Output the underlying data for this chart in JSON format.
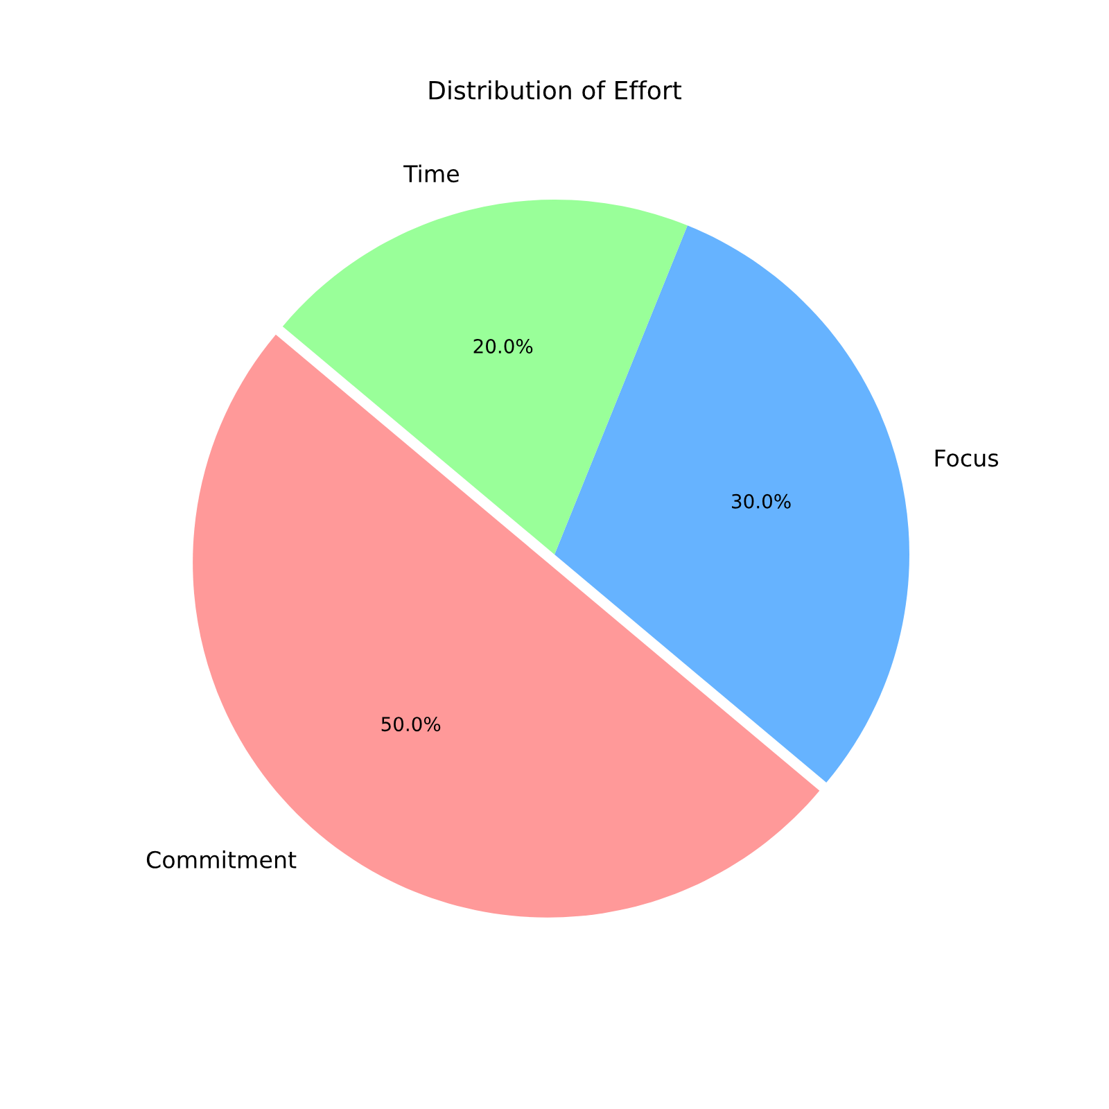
{
  "chart_data": {
    "type": "pie",
    "title": "Distribution of Effort",
    "categories": [
      "Commitment",
      "Focus",
      "Time"
    ],
    "values": [
      50,
      30,
      20
    ],
    "colors": [
      "#ff9999",
      "#66b3ff",
      "#99ff99"
    ],
    "value_labels": [
      "50.0%",
      "30.0%",
      "20.0%"
    ],
    "legend": false
  }
}
